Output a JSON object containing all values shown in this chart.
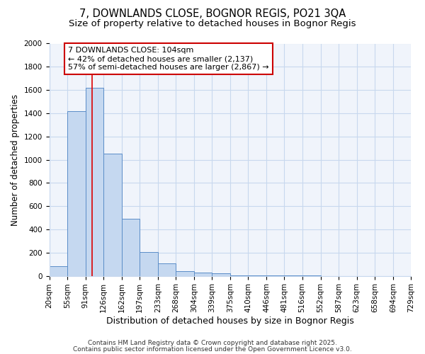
{
  "title1": "7, DOWNLANDS CLOSE, BOGNOR REGIS, PO21 3QA",
  "title2": "Size of property relative to detached houses in Bognor Regis",
  "xlabel": "Distribution of detached houses by size in Bognor Regis",
  "ylabel": "Number of detached properties",
  "bin_edges": [
    20,
    55,
    91,
    126,
    162,
    197,
    233,
    268,
    304,
    339,
    375,
    410,
    446,
    481,
    516,
    552,
    587,
    623,
    658,
    694,
    729
  ],
  "bar_heights": [
    80,
    1420,
    1620,
    1050,
    490,
    205,
    105,
    40,
    30,
    20,
    5,
    3,
    2,
    1,
    1,
    0,
    0,
    0,
    0,
    0
  ],
  "bar_color": "#c5d8f0",
  "bar_edge_color": "#5b8dc8",
  "grid_color": "#c8d8ee",
  "background_color": "#ffffff",
  "plot_bg_color": "#f0f4fb",
  "property_size": 104,
  "vline_color": "#dd0000",
  "annotation_text": "7 DOWNLANDS CLOSE: 104sqm\n← 42% of detached houses are smaller (2,137)\n57% of semi-detached houses are larger (2,867) →",
  "annotation_box_color": "white",
  "annotation_border_color": "#cc0000",
  "ylim": [
    0,
    2000
  ],
  "yticks": [
    0,
    200,
    400,
    600,
    800,
    1000,
    1200,
    1400,
    1600,
    1800,
    2000
  ],
  "footer1": "Contains HM Land Registry data © Crown copyright and database right 2025.",
  "footer2": "Contains public sector information licensed under the Open Government Licence v3.0.",
  "title1_fontsize": 10.5,
  "title2_fontsize": 9.5,
  "xlabel_fontsize": 9,
  "ylabel_fontsize": 8.5,
  "tick_fontsize": 7.5,
  "annot_fontsize": 8,
  "footer_fontsize": 6.5
}
